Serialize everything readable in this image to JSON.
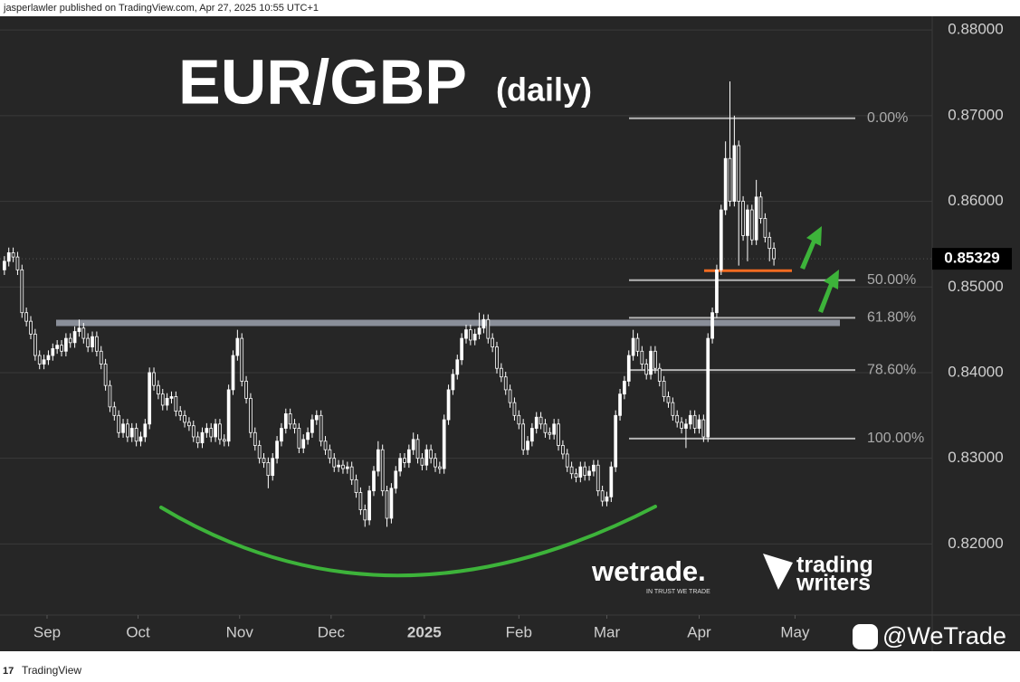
{
  "header": {
    "text": "jasperlawler published on TradingView.com, Apr 27, 2025 10:55 UTC+1"
  },
  "footer": {
    "text": "TradingView"
  },
  "watermarks": {
    "brand": "wetrade.",
    "tagline": "IN TRUST WE TRADE",
    "partner_line1": "trading",
    "partner_line2": "writers",
    "handle": "@WeTrade"
  },
  "chart_data": {
    "type": "candlestick",
    "title": "EUR/GBP",
    "subtitle": "(daily)",
    "color": "#ffffff",
    "grid": true,
    "xlim": [
      -1,
      211
    ],
    "xticks": [
      {
        "value": 9.7,
        "label": "Sep"
      },
      {
        "value": 30.4,
        "label": "Oct"
      },
      {
        "value": 53.5,
        "label": "Nov"
      },
      {
        "value": 74.3,
        "label": "Dec"
      },
      {
        "value": 95.5,
        "label": "2025"
      },
      {
        "value": 117,
        "label": "Feb"
      },
      {
        "value": 137,
        "label": "Mar"
      },
      {
        "value": 158,
        "label": "Apr"
      },
      {
        "value": 179.8,
        "label": "May"
      }
    ],
    "ylim": [
      0.8117,
      0.8816
    ],
    "yticks": [
      {
        "value": 0.82,
        "label": "0.82000"
      },
      {
        "value": 0.83,
        "label": "0.83000"
      },
      {
        "value": 0.84,
        "label": "0.84000"
      },
      {
        "value": 0.85,
        "label": "0.85000"
      },
      {
        "value": 0.86,
        "label": "0.86000"
      },
      {
        "value": 0.87,
        "label": "0.87000"
      },
      {
        "value": 0.88,
        "label": "0.88000"
      }
    ],
    "fib_levels": [
      {
        "label": "0.00%",
        "value": 0.8697
      },
      {
        "label": "50.00%",
        "value": 0.8508
      },
      {
        "label": "61.80%",
        "value": 0.8464
      },
      {
        "label": "78.60%",
        "value": 0.8403
      },
      {
        "label": "100.00%",
        "value": 0.8323
      }
    ],
    "resistance_level": 0.8458,
    "support_level": 0.8519,
    "open": [
      0.852,
      0.853,
      0.854,
      0.8535,
      0.852,
      0.847,
      0.846,
      0.8445,
      0.842,
      0.841,
      0.8415,
      0.842,
      0.8428,
      0.8432,
      0.8425,
      0.844,
      0.8435,
      0.8448,
      0.8452,
      0.844,
      0.843,
      0.8442,
      0.8425,
      0.841,
      0.8385,
      0.836,
      0.835,
      0.833,
      0.834,
      0.8325,
      0.8335,
      0.832,
      0.8325,
      0.834,
      0.84,
      0.8385,
      0.8375,
      0.8362,
      0.837,
      0.8372,
      0.8355,
      0.835,
      0.8342,
      0.8338,
      0.8325,
      0.8318,
      0.833,
      0.8335,
      0.8325,
      0.834,
      0.8322,
      0.832,
      0.838,
      0.842,
      0.844,
      0.839,
      0.837,
      0.833,
      0.8315,
      0.83,
      0.8295,
      0.828,
      0.83,
      0.832,
      0.8335,
      0.8352,
      0.834,
      0.8335,
      0.8312,
      0.8322,
      0.833,
      0.8345,
      0.835,
      0.832,
      0.831,
      0.83,
      0.829,
      0.8292,
      0.8288,
      0.829,
      0.8275,
      0.826,
      0.824,
      0.8228,
      0.8262,
      0.8285,
      0.831,
      0.8262,
      0.823,
      0.8265,
      0.8285,
      0.83,
      0.8295,
      0.831,
      0.8322,
      0.83,
      0.8292,
      0.831,
      0.83,
      0.829,
      0.8288,
      0.8345,
      0.838,
      0.8398,
      0.8415,
      0.844,
      0.845,
      0.8438,
      0.8445,
      0.8452,
      0.8462,
      0.844,
      0.843,
      0.8405,
      0.8395,
      0.838,
      0.8365,
      0.835,
      0.834,
      0.831,
      0.832,
      0.8335,
      0.8348,
      0.834,
      0.833,
      0.8328,
      0.834,
      0.8315,
      0.8305,
      0.829,
      0.8282,
      0.8278,
      0.829,
      0.828,
      0.8285,
      0.8292,
      0.8262,
      0.825,
      0.8255,
      0.829,
      0.835,
      0.8375,
      0.839,
      0.842,
      0.844,
      0.8425,
      0.841,
      0.8398,
      0.8425,
      0.8405,
      0.839,
      0.8372,
      0.8365,
      0.835,
      0.8342,
      0.8335,
      0.834,
      0.835,
      0.8335,
      0.8345,
      0.8325,
      0.844,
      0.847,
      0.852,
      0.859,
      0.865,
      0.86,
      0.8665,
      0.86,
      0.856,
      0.859,
      0.8555,
      0.8605,
      0.858,
      0.8558,
      0.8545
    ],
    "high": [
      0.8536,
      0.8546,
      0.8546,
      0.8541,
      0.8526,
      0.8476,
      0.8466,
      0.8451,
      0.8426,
      0.8421,
      0.8426,
      0.8434,
      0.8438,
      0.8438,
      0.8446,
      0.8446,
      0.8454,
      0.8462,
      0.8458,
      0.8446,
      0.8448,
      0.8448,
      0.8431,
      0.8416,
      0.8391,
      0.8366,
      0.8356,
      0.8346,
      0.8346,
      0.8341,
      0.8341,
      0.8331,
      0.8346,
      0.8406,
      0.8406,
      0.8391,
      0.8381,
      0.8376,
      0.8378,
      0.8378,
      0.8361,
      0.8356,
      0.8348,
      0.8344,
      0.8331,
      0.8336,
      0.8341,
      0.8341,
      0.8346,
      0.8346,
      0.8328,
      0.8386,
      0.8426,
      0.845,
      0.8446,
      0.8396,
      0.8376,
      0.8336,
      0.8321,
      0.8306,
      0.8301,
      0.8306,
      0.8326,
      0.8341,
      0.8358,
      0.8358,
      0.8346,
      0.8341,
      0.8328,
      0.8336,
      0.8351,
      0.8356,
      0.8356,
      0.8326,
      0.8316,
      0.8306,
      0.8298,
      0.8298,
      0.8296,
      0.8296,
      0.8281,
      0.8266,
      0.8246,
      0.8268,
      0.8291,
      0.832,
      0.8316,
      0.8268,
      0.8271,
      0.8291,
      0.8306,
      0.8306,
      0.8316,
      0.833,
      0.8328,
      0.8306,
      0.8316,
      0.8316,
      0.8306,
      0.8296,
      0.8351,
      0.8386,
      0.8404,
      0.8421,
      0.8446,
      0.8456,
      0.8456,
      0.8451,
      0.847,
      0.8468,
      0.8468,
      0.8446,
      0.8436,
      0.8411,
      0.8401,
      0.8386,
      0.8371,
      0.8356,
      0.8346,
      0.8326,
      0.8341,
      0.8354,
      0.8354,
      0.8346,
      0.8336,
      0.8346,
      0.8346,
      0.8321,
      0.8311,
      0.8296,
      0.8288,
      0.8296,
      0.8296,
      0.8291,
      0.8298,
      0.8298,
      0.8268,
      0.8261,
      0.8296,
      0.8356,
      0.8381,
      0.8396,
      0.8426,
      0.845,
      0.8446,
      0.8431,
      0.8416,
      0.8431,
      0.8431,
      0.8411,
      0.8396,
      0.8378,
      0.8371,
      0.8356,
      0.8348,
      0.8346,
      0.8356,
      0.8356,
      0.8351,
      0.8351,
      0.8446,
      0.8476,
      0.8526,
      0.8596,
      0.867,
      0.874,
      0.87,
      0.8671,
      0.8606,
      0.8596,
      0.8596,
      0.8625,
      0.8611,
      0.8586,
      0.8564,
      0.8552
    ],
    "low": [
      0.8514,
      0.8524,
      0.8529,
      0.8514,
      0.8464,
      0.8454,
      0.8439,
      0.8414,
      0.8404,
      0.8404,
      0.8409,
      0.8414,
      0.8422,
      0.8419,
      0.8419,
      0.8429,
      0.8429,
      0.8442,
      0.8434,
      0.8424,
      0.8424,
      0.8419,
      0.8404,
      0.8379,
      0.8354,
      0.8344,
      0.8324,
      0.8324,
      0.8319,
      0.8319,
      0.8314,
      0.8314,
      0.8319,
      0.8334,
      0.8379,
      0.8369,
      0.8356,
      0.8356,
      0.8364,
      0.8349,
      0.8344,
      0.8336,
      0.8332,
      0.8319,
      0.8312,
      0.8312,
      0.8324,
      0.8319,
      0.8319,
      0.8316,
      0.8314,
      0.8314,
      0.8374,
      0.8414,
      0.8384,
      0.8364,
      0.8324,
      0.8309,
      0.8294,
      0.8289,
      0.8265,
      0.8274,
      0.8294,
      0.8314,
      0.8329,
      0.8334,
      0.8329,
      0.8306,
      0.8306,
      0.8316,
      0.8324,
      0.8339,
      0.8314,
      0.8304,
      0.8294,
      0.8284,
      0.8284,
      0.8282,
      0.8282,
      0.8269,
      0.8254,
      0.8234,
      0.822,
      0.8222,
      0.8256,
      0.8279,
      0.8256,
      0.822,
      0.8224,
      0.8259,
      0.8279,
      0.8289,
      0.8289,
      0.8304,
      0.8294,
      0.8286,
      0.8286,
      0.8294,
      0.8284,
      0.8282,
      0.8282,
      0.8339,
      0.8374,
      0.8392,
      0.8409,
      0.8434,
      0.8432,
      0.8432,
      0.8439,
      0.8446,
      0.8434,
      0.8424,
      0.8399,
      0.8389,
      0.8374,
      0.8359,
      0.8344,
      0.8334,
      0.8304,
      0.8304,
      0.8314,
      0.8329,
      0.8334,
      0.8324,
      0.8322,
      0.8322,
      0.8309,
      0.8299,
      0.8284,
      0.8276,
      0.8272,
      0.8272,
      0.8274,
      0.8274,
      0.8279,
      0.8256,
      0.8244,
      0.8244,
      0.8249,
      0.8284,
      0.8344,
      0.8369,
      0.8384,
      0.8414,
      0.8419,
      0.8404,
      0.8392,
      0.8392,
      0.8399,
      0.8384,
      0.8366,
      0.8359,
      0.8344,
      0.8336,
      0.8329,
      0.8312,
      0.8334,
      0.8329,
      0.8329,
      0.8319,
      0.8319,
      0.8434,
      0.8464,
      0.8514,
      0.8584,
      0.8594,
      0.8594,
      0.8525,
      0.8554,
      0.853,
      0.8549,
      0.8549,
      0.8574,
      0.8552,
      0.853,
      0.8525
    ],
    "close": [
      0.853,
      0.854,
      0.8535,
      0.852,
      0.847,
      0.846,
      0.8445,
      0.842,
      0.841,
      0.8415,
      0.842,
      0.8428,
      0.8432,
      0.8425,
      0.844,
      0.8435,
      0.8448,
      0.8452,
      0.844,
      0.843,
      0.8442,
      0.8425,
      0.841,
      0.8385,
      0.836,
      0.835,
      0.833,
      0.834,
      0.8325,
      0.8335,
      0.832,
      0.8325,
      0.834,
      0.84,
      0.8385,
      0.8375,
      0.8362,
      0.837,
      0.8372,
      0.8355,
      0.835,
      0.8342,
      0.8338,
      0.8325,
      0.8318,
      0.833,
      0.8335,
      0.8325,
      0.834,
      0.8322,
      0.832,
      0.838,
      0.842,
      0.844,
      0.839,
      0.837,
      0.833,
      0.8315,
      0.83,
      0.8295,
      0.828,
      0.83,
      0.832,
      0.8335,
      0.8352,
      0.834,
      0.8335,
      0.8312,
      0.8322,
      0.833,
      0.8345,
      0.835,
      0.832,
      0.831,
      0.83,
      0.829,
      0.8292,
      0.8288,
      0.829,
      0.8275,
      0.826,
      0.824,
      0.8228,
      0.8262,
      0.8285,
      0.831,
      0.8262,
      0.823,
      0.8265,
      0.8285,
      0.83,
      0.8295,
      0.831,
      0.8322,
      0.83,
      0.8292,
      0.831,
      0.83,
      0.829,
      0.8288,
      0.8345,
      0.838,
      0.8398,
      0.8415,
      0.844,
      0.845,
      0.8438,
      0.8445,
      0.8452,
      0.8462,
      0.844,
      0.843,
      0.8405,
      0.8395,
      0.838,
      0.8365,
      0.835,
      0.834,
      0.831,
      0.832,
      0.8335,
      0.8348,
      0.834,
      0.833,
      0.8328,
      0.834,
      0.8315,
      0.8305,
      0.829,
      0.8282,
      0.8278,
      0.829,
      0.828,
      0.8285,
      0.8292,
      0.8262,
      0.825,
      0.8255,
      0.829,
      0.835,
      0.8375,
      0.839,
      0.842,
      0.844,
      0.8425,
      0.841,
      0.8398,
      0.8425,
      0.8405,
      0.839,
      0.8372,
      0.8365,
      0.835,
      0.8342,
      0.8335,
      0.834,
      0.835,
      0.8335,
      0.8345,
      0.8325,
      0.844,
      0.847,
      0.852,
      0.859,
      0.865,
      0.86,
      0.8665,
      0.86,
      0.856,
      0.859,
      0.8555,
      0.8605,
      0.858,
      0.8558,
      0.8545,
      0.85329
    ]
  }
}
